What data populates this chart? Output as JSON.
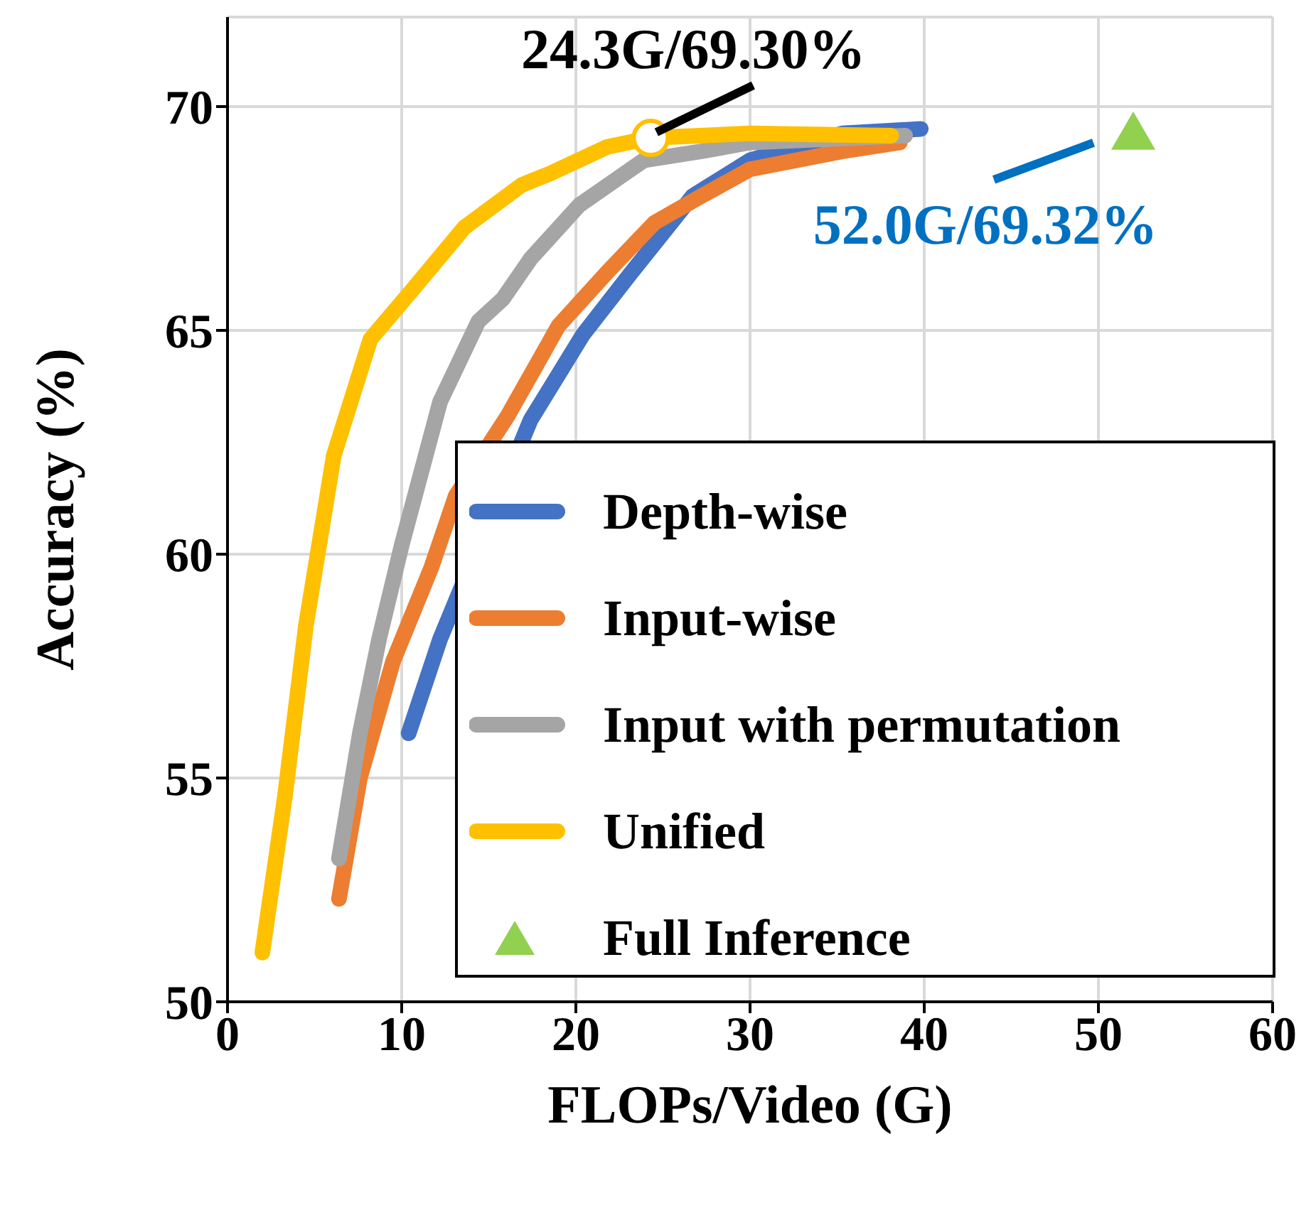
{
  "chart_data": {
    "type": "line",
    "xlabel": "FLOPs/Video (G)",
    "ylabel": "Accuracy (%)",
    "xlim": [
      0,
      60
    ],
    "xticks": [
      0,
      10,
      20,
      30,
      40,
      50,
      60
    ],
    "ylim": [
      50,
      72
    ],
    "yticks": [
      50,
      55,
      60,
      65,
      70
    ],
    "grid": true,
    "legend": "bottom right",
    "line_style": "solid",
    "series": [
      {
        "name": "Depth-wise",
        "color": "#4472c4",
        "marker": "none",
        "x": [
          10.4,
          12.2,
          17.4,
          20.4,
          23.1,
          26.7,
          30,
          35.3,
          39.8
        ],
        "values": [
          56.0,
          58.1,
          63.0,
          64.9,
          66.25,
          68.0,
          68.8,
          69.4,
          69.5
        ]
      },
      {
        "name": "Input-wise",
        "color": "#ed7d31",
        "marker": "none",
        "x": [
          6.4,
          7.6,
          9.5,
          11.7,
          13.1,
          16.1,
          19.0,
          21.8,
          24.5,
          27.2,
          30,
          35.3,
          38.6
        ],
        "values": [
          52.3,
          55.0,
          57.6,
          59.7,
          61.3,
          63.1,
          65.1,
          66.3,
          67.4,
          68.0,
          68.6,
          69.0,
          69.2
        ]
      },
      {
        "name": "Input with permutation",
        "color": "#a5a5a5",
        "marker": "none",
        "x": [
          6.4,
          7.6,
          8.7,
          10.0,
          12.2,
          14.4,
          15.8,
          17.4,
          20.2,
          23.9,
          27.2,
          30,
          38.9
        ],
        "values": [
          53.2,
          56.0,
          58.1,
          60.2,
          63.4,
          65.2,
          65.7,
          66.6,
          67.8,
          68.8,
          69.0,
          69.2,
          69.35
        ]
      },
      {
        "name": "Unified",
        "color": "#ffc000",
        "marker": "none",
        "x": [
          2.0,
          3.3,
          4.5,
          6.1,
          8.2,
          10.6,
          13.6,
          16.9,
          18.5,
          21.8,
          24.3,
          30,
          38.1
        ],
        "values": [
          51.1,
          54.6,
          58.4,
          62.2,
          64.8,
          65.9,
          67.3,
          68.25,
          68.5,
          69.1,
          69.3,
          69.4,
          69.35
        ]
      },
      {
        "name": "Full Inference",
        "type": "scatter",
        "color": "#92d050",
        "marker": "triangle",
        "x": [
          52.0
        ],
        "values": [
          69.32
        ]
      }
    ],
    "annotations": [
      {
        "text": "24.3G/69.30%",
        "x": 24.3,
        "y": 69.3
      },
      {
        "text": "52.0G/69.32%",
        "x": 52.0,
        "y": 69.32
      }
    ]
  }
}
